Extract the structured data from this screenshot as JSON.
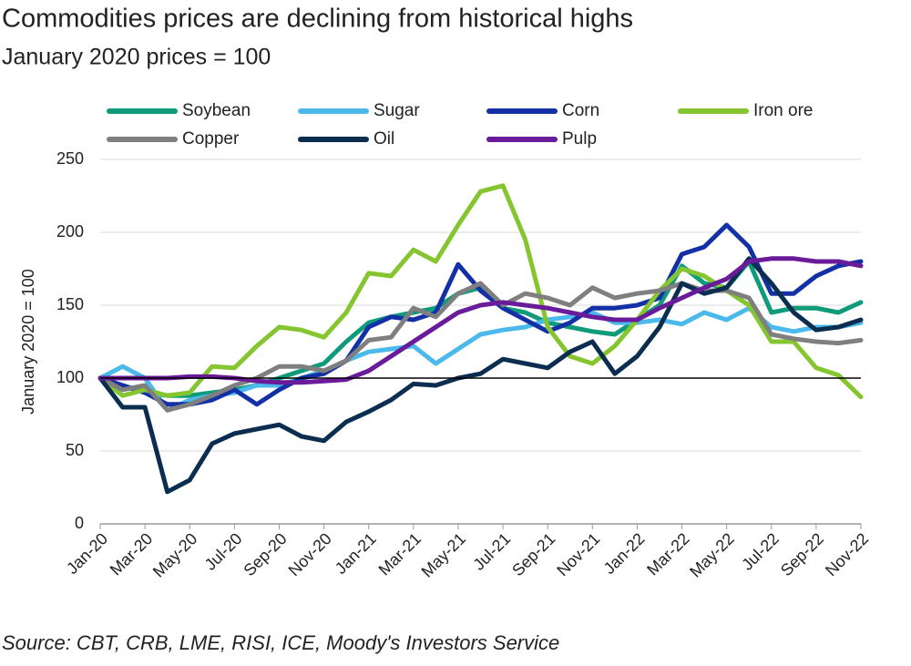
{
  "chart_data": {
    "type": "line",
    "title": "Commodities prices are declining from historical highs",
    "subtitle": "January 2020 prices = 100",
    "y_label": "January  2020 = 100",
    "source": "Source: CBT, CRB, LME, RISI, ICE, Moody's Investors Service",
    "categories": [
      "Jan-20",
      null,
      "Mar-20",
      null,
      "May-20",
      null,
      "Jul-20",
      null,
      "Sep-20",
      null,
      "Nov-20",
      null,
      "Jan-21",
      null,
      "Mar-21",
      null,
      "May-21",
      null,
      "Jul-21",
      null,
      "Sep-21",
      null,
      "Nov-21",
      null,
      "Jan-22",
      null,
      "Mar-22",
      null,
      "May-22",
      null,
      "Jul-22",
      null,
      "Sep-22",
      null,
      "Nov-22"
    ],
    "ylim": [
      0,
      250
    ],
    "yticks": [
      0,
      50,
      100,
      150,
      200,
      250
    ],
    "grid": true,
    "hline": 100,
    "series": [
      {
        "name": "Soybean",
        "color": "#0f9b7a",
        "values": [
          100,
          95,
          90,
          88,
          88,
          90,
          92,
          95,
          100,
          105,
          110,
          125,
          138,
          142,
          145,
          148,
          158,
          162,
          148,
          145,
          138,
          135,
          132,
          130,
          140,
          150,
          177,
          165,
          162,
          180,
          145,
          148,
          148,
          145,
          152
        ]
      },
      {
        "name": "Sugar",
        "color": "#4cb9ec",
        "values": [
          100,
          108,
          100,
          78,
          85,
          88,
          90,
          95,
          95,
          100,
          105,
          112,
          118,
          120,
          122,
          110,
          120,
          130,
          133,
          135,
          140,
          142,
          145,
          138,
          138,
          140,
          137,
          145,
          140,
          148,
          135,
          132,
          135,
          135,
          138
        ]
      },
      {
        "name": "Corn",
        "color": "#1330a6",
        "values": [
          100,
          95,
          90,
          82,
          82,
          85,
          92,
          82,
          92,
          100,
          103,
          112,
          135,
          142,
          140,
          145,
          178,
          160,
          148,
          140,
          132,
          138,
          148,
          148,
          150,
          155,
          185,
          190,
          205,
          190,
          158,
          158,
          170,
          177,
          180
        ]
      },
      {
        "name": "Iron ore",
        "color": "#84c530",
        "values": [
          100,
          88,
          92,
          88,
          90,
          108,
          107,
          122,
          135,
          133,
          128,
          145,
          172,
          170,
          188,
          180,
          205,
          228,
          232,
          195,
          135,
          115,
          110,
          122,
          140,
          160,
          175,
          170,
          160,
          150,
          125,
          125,
          107,
          102,
          87
        ]
      },
      {
        "name": "Copper",
        "color": "#7f7f7f",
        "values": [
          100,
          92,
          95,
          78,
          82,
          88,
          95,
          100,
          108,
          108,
          105,
          112,
          126,
          128,
          148,
          142,
          158,
          165,
          150,
          158,
          155,
          150,
          162,
          155,
          158,
          160,
          165,
          160,
          160,
          155,
          130,
          127,
          125,
          124,
          126
        ]
      },
      {
        "name": "Oil",
        "color": "#0b2d4f",
        "values": [
          100,
          80,
          80,
          22,
          30,
          55,
          62,
          65,
          68,
          60,
          57,
          70,
          77,
          85,
          96,
          95,
          100,
          103,
          113,
          110,
          107,
          118,
          125,
          103,
          115,
          135,
          165,
          158,
          162,
          182,
          165,
          145,
          133,
          135,
          140
        ]
      },
      {
        "name": "Pulp",
        "color": "#6a1b9a",
        "values": [
          100,
          100,
          100,
          100,
          101,
          101,
          100,
          98,
          97,
          97,
          98,
          99,
          105,
          115,
          125,
          135,
          145,
          150,
          152,
          150,
          148,
          145,
          142,
          140,
          140,
          148,
          155,
          162,
          168,
          180,
          182,
          182,
          180,
          180,
          177
        ]
      }
    ]
  }
}
